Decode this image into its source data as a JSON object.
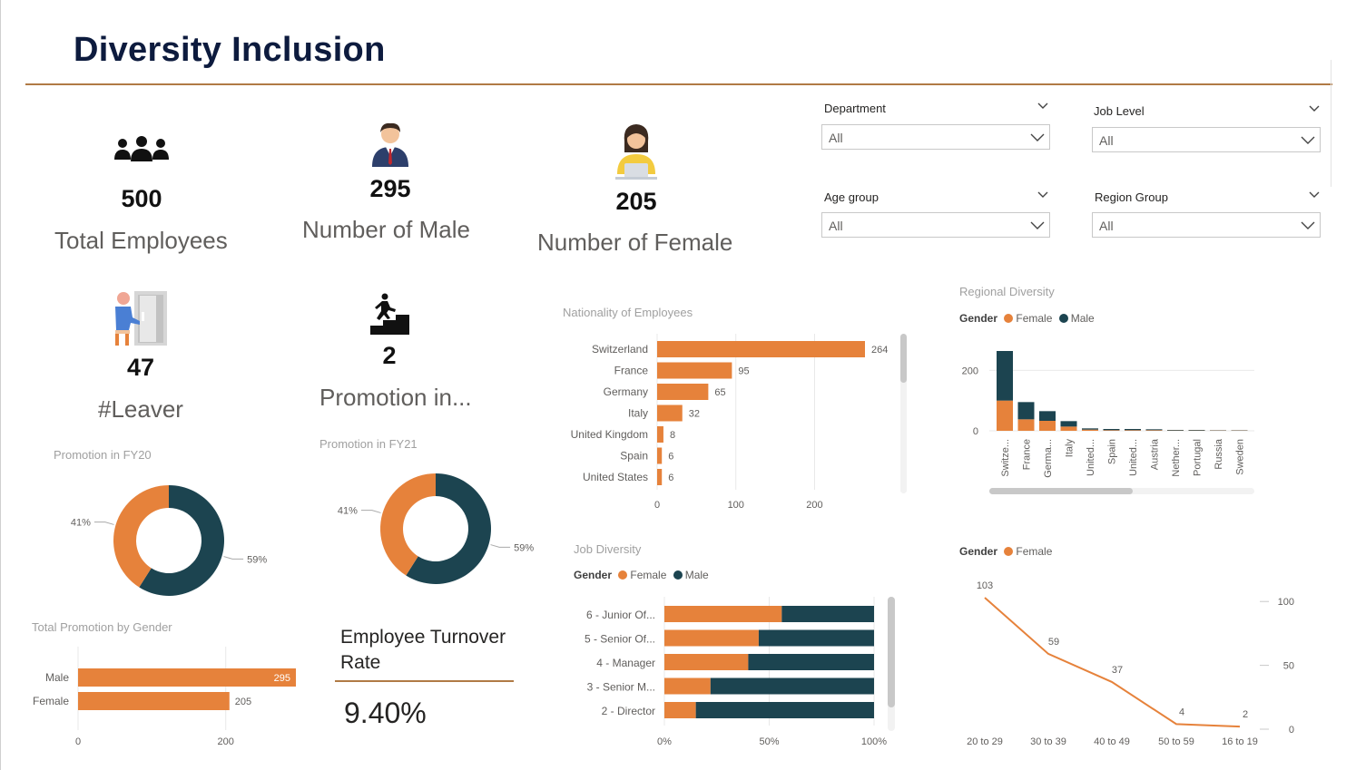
{
  "header": {
    "title": "Diversity Inclusion"
  },
  "colors": {
    "female": "#E6823B",
    "male": "#1C4450",
    "accent_rule": "#B07A45"
  },
  "kpis": {
    "total": {
      "value": "500",
      "label": "Total Employees",
      "icon": "people-group-icon"
    },
    "male": {
      "value": "295",
      "label": "Number of Male",
      "icon": "businessman-icon"
    },
    "female": {
      "value": "205",
      "label": "Number of Female",
      "icon": "businesswoman-icon"
    },
    "leaver": {
      "value": "47",
      "label": "#Leaver",
      "icon": "exit-door-icon"
    },
    "promotion": {
      "value": "2",
      "label": "Promotion in...",
      "icon": "stairs-climb-icon"
    }
  },
  "slicers": {
    "department": {
      "title": "Department",
      "value": "All"
    },
    "job_level": {
      "title": "Job Level",
      "value": "All"
    },
    "age_group": {
      "title": "Age group",
      "value": "All"
    },
    "region_group": {
      "title": "Region Group",
      "value": "All"
    }
  },
  "turnover": {
    "title": "Employee Turnover Rate",
    "value": "9.40%"
  },
  "legends": {
    "gender": "Gender",
    "female": "Female",
    "male": "Male"
  },
  "visual_titles": {
    "promo_fy20": "Promotion in FY20",
    "promo_fy21": "Promotion in FY21",
    "total_promo": "Total Promotion by Gender",
    "nationality": "Nationality of Employees",
    "regional": "Regional Diversity",
    "job": "Job Diversity"
  },
  "chart_data": [
    {
      "id": "promo_fy20",
      "type": "pie",
      "title": "Promotion in FY20",
      "slices": [
        {
          "name": "Female",
          "value": 41,
          "label": "41%"
        },
        {
          "name": "Male",
          "value": 59,
          "label": "59%"
        }
      ]
    },
    {
      "id": "promo_fy21",
      "type": "pie",
      "title": "Promotion in FY21",
      "slices": [
        {
          "name": "Female",
          "value": 41,
          "label": "41%"
        },
        {
          "name": "Male",
          "value": 59,
          "label": "59%"
        }
      ]
    },
    {
      "id": "total_promo",
      "type": "bar",
      "orientation": "horizontal",
      "title": "Total Promotion by Gender",
      "categories": [
        "Male",
        "Female"
      ],
      "values": [
        295,
        205
      ],
      "xlim": [
        0,
        295
      ],
      "xticks": [
        0,
        200
      ]
    },
    {
      "id": "nationality",
      "type": "bar",
      "orientation": "horizontal",
      "title": "Nationality of Employees",
      "categories": [
        "Switzerland",
        "France",
        "Germany",
        "Italy",
        "United Kingdom",
        "Spain",
        "United States"
      ],
      "values": [
        264,
        95,
        65,
        32,
        8,
        6,
        6
      ],
      "xlim": [
        0,
        264
      ],
      "xticks": [
        0,
        100,
        200
      ]
    },
    {
      "id": "regional",
      "type": "bar",
      "stacked": true,
      "title": "Regional Diversity",
      "categories": [
        "Switze...",
        "France",
        "Germa...",
        "Italy",
        "United...",
        "Spain",
        "United...",
        "Austria",
        "Nether...",
        "Portugal",
        "Russia",
        "Sweden"
      ],
      "series": [
        {
          "name": "Female",
          "values": [
            100,
            38,
            33,
            14,
            4,
            2,
            2,
            2,
            1,
            1,
            1,
            1
          ]
        },
        {
          "name": "Male",
          "values": [
            164,
            57,
            32,
            18,
            4,
            4,
            4,
            3,
            2,
            2,
            1,
            1
          ]
        }
      ],
      "ylim": [
        0,
        264
      ],
      "yticks": [
        0,
        200
      ]
    },
    {
      "id": "job",
      "type": "bar",
      "stacked": true,
      "orientation": "horizontal",
      "percent": true,
      "title": "Job Diversity",
      "categories": [
        "6 - Junior Of...",
        "5 - Senior Of...",
        "4 - Manager",
        "3 - Senior M...",
        "2 - Director"
      ],
      "series": [
        {
          "name": "Female",
          "values": [
            56,
            45,
            40,
            22,
            15
          ]
        },
        {
          "name": "Male",
          "values": [
            44,
            55,
            60,
            78,
            85
          ]
        }
      ],
      "xticks": [
        "0%",
        "50%",
        "100%"
      ]
    },
    {
      "id": "age",
      "type": "line",
      "x": [
        "20 to 29",
        "30 to 39",
        "40 to 49",
        "50 to 59",
        "16 to 19"
      ],
      "series": [
        {
          "name": "Female",
          "values": [
            103,
            59,
            37,
            4,
            2
          ]
        }
      ],
      "ylim": [
        0,
        103
      ],
      "yticks": [
        0,
        50,
        100
      ]
    }
  ]
}
